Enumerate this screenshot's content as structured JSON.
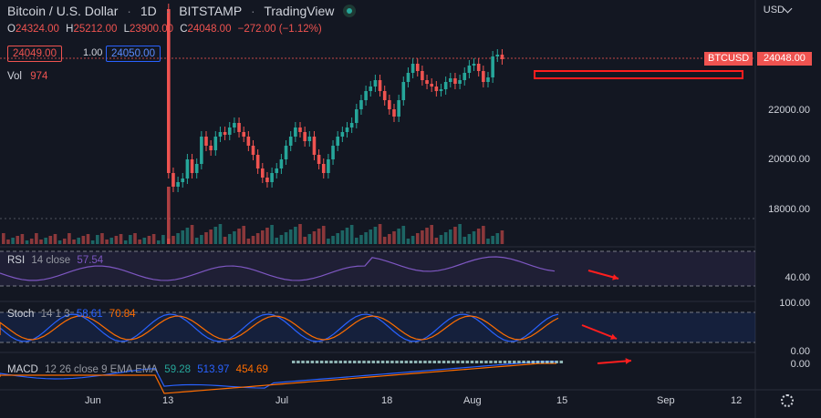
{
  "header": {
    "symbol": "Bitcoin / U.S. Dollar",
    "interval": "1D",
    "exchange": "BITSTAMP",
    "source": "TradingView"
  },
  "ohlc": {
    "o_label": "O",
    "o": "24324.00",
    "h_label": "H",
    "h": "25212.00",
    "l_label": "L",
    "l": "23900.00",
    "c_label": "C",
    "c": "24048.00",
    "change": "−272.00 (−1.12%)"
  },
  "quote": {
    "bid": "24049.00",
    "spread": "1.00",
    "ask": "24050.00"
  },
  "volume": {
    "label": "Vol",
    "value": "974"
  },
  "price_axis": {
    "currency": "USD",
    "ticks": [
      "22000.00",
      "20000.00",
      "18000.00"
    ],
    "symbol_tag": "BTCUSD",
    "last_price": "24048.00"
  },
  "time_axis": {
    "ticks": [
      "Jun",
      "13",
      "Jul",
      "18",
      "Aug",
      "15",
      "Sep",
      "12"
    ]
  },
  "rsi": {
    "label": "RSI",
    "params": "14 close",
    "value": "57.54",
    "axis": "40.00"
  },
  "stoch": {
    "label": "Stoch",
    "params": "14 1 3",
    "k": "58.61",
    "d": "70.84",
    "axis_top": "100.00",
    "axis_bottom": "0.00"
  },
  "macd": {
    "label": "MACD",
    "params": "12 26 close 9 EMA EMA",
    "hist": "59.28",
    "macd": "513.97",
    "signal": "454.69",
    "axis": "0.00"
  },
  "colors": {
    "up": "#26a69a",
    "down": "#ef5350",
    "bg": "#131722",
    "rsi": "#7e57c2",
    "stoch_k": "#2962ff",
    "stoch_d": "#ff6d00",
    "annotation": "#ff1e1e"
  }
}
